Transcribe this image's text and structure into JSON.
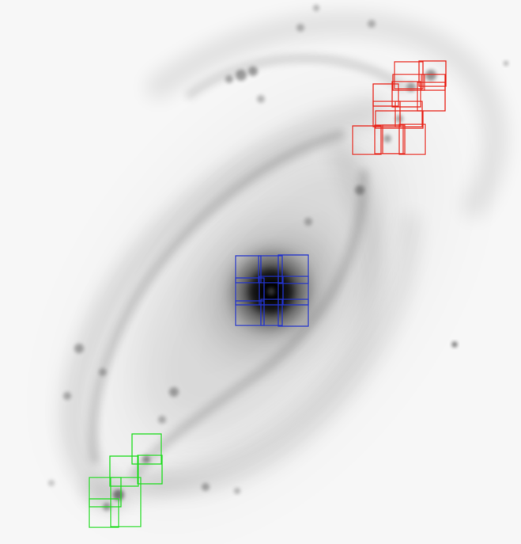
{
  "image": {
    "subject": "spiral-galaxy",
    "render": "inverted-grayscale",
    "background_color": "#f7f7f7",
    "galaxy_tone": "#000000"
  },
  "overlays": [
    {
      "name": "red-box-group",
      "color": "#e8281e",
      "region": "upper-right-arm",
      "box_count": 14
    },
    {
      "name": "blue-box-group",
      "color": "#2233cc",
      "region": "galaxy-nucleus",
      "box_count": 9
    },
    {
      "name": "green-box-group",
      "color": "#22dd22",
      "region": "lower-left-arm",
      "box_count": 6
    }
  ]
}
